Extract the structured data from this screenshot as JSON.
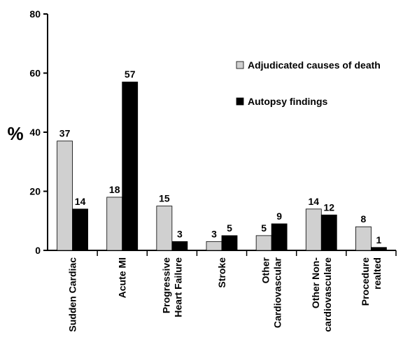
{
  "chart_data": {
    "type": "bar",
    "title": "",
    "xlabel": "",
    "ylabel": "%",
    "ylim": [
      0,
      80
    ],
    "yticks": [
      0,
      20,
      40,
      60,
      80
    ],
    "grid": false,
    "legend_position": "top-right",
    "categories": [
      [
        "Sudden Cardiac"
      ],
      [
        "Acute MI"
      ],
      [
        "Progressive",
        "Heart Failure"
      ],
      [
        "Stroke"
      ],
      [
        "Other",
        "Cardiovascular"
      ],
      [
        "Other Non-",
        "cardiovasculare"
      ],
      [
        "Procedure",
        "realted"
      ]
    ],
    "series": [
      {
        "name": "Adjudicated causes of death",
        "color": "#d0d0d0",
        "values": [
          37,
          18,
          15,
          3,
          5,
          14,
          8
        ]
      },
      {
        "name": "Autopsy findings",
        "color": "#000000",
        "values": [
          14,
          57,
          3,
          5,
          9,
          12,
          1
        ]
      }
    ]
  }
}
